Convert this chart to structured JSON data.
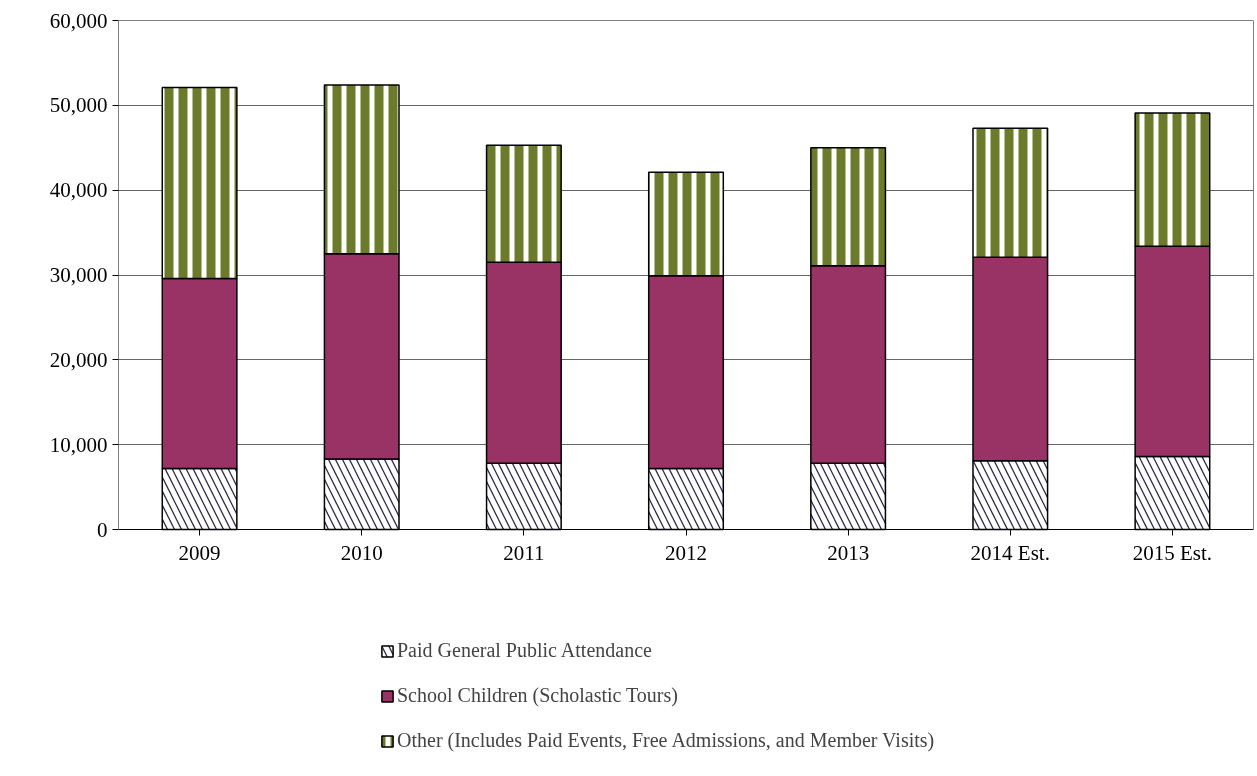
{
  "chart_data": {
    "type": "bar",
    "stacked": true,
    "categories": [
      "2009",
      "2010",
      "2011",
      "2012",
      "2013",
      "2014 Est.",
      "2015 Est."
    ],
    "series": [
      {
        "name": "Paid General Public Attendance",
        "color": "#2e2a4f",
        "values": [
          7200,
          8300,
          7800,
          7200,
          7800,
          8100,
          8600
        ]
      },
      {
        "name": "School Children (Scholastic Tours)",
        "color": "#993366",
        "values": [
          22400,
          24200,
          23700,
          22700,
          23300,
          24000,
          24800
        ]
      },
      {
        "name": "Other (Includes Paid Events, Free Admissions, and Member Visits)",
        "color": "#6b7b2b",
        "values": [
          22500,
          19900,
          13800,
          12200,
          13900,
          15200,
          15700
        ]
      }
    ],
    "ylim": [
      0,
      60000
    ],
    "yticks": [
      {
        "value": 0,
        "label": "0"
      },
      {
        "value": 10000,
        "label": "10,000"
      },
      {
        "value": 20000,
        "label": "20,000"
      },
      {
        "value": 30000,
        "label": "30,000"
      },
      {
        "value": 40000,
        "label": "40,000"
      },
      {
        "value": 50000,
        "label": "50,000"
      },
      {
        "value": 60000,
        "label": "60,000"
      }
    ],
    "grid": "y",
    "legend": "bottom"
  }
}
